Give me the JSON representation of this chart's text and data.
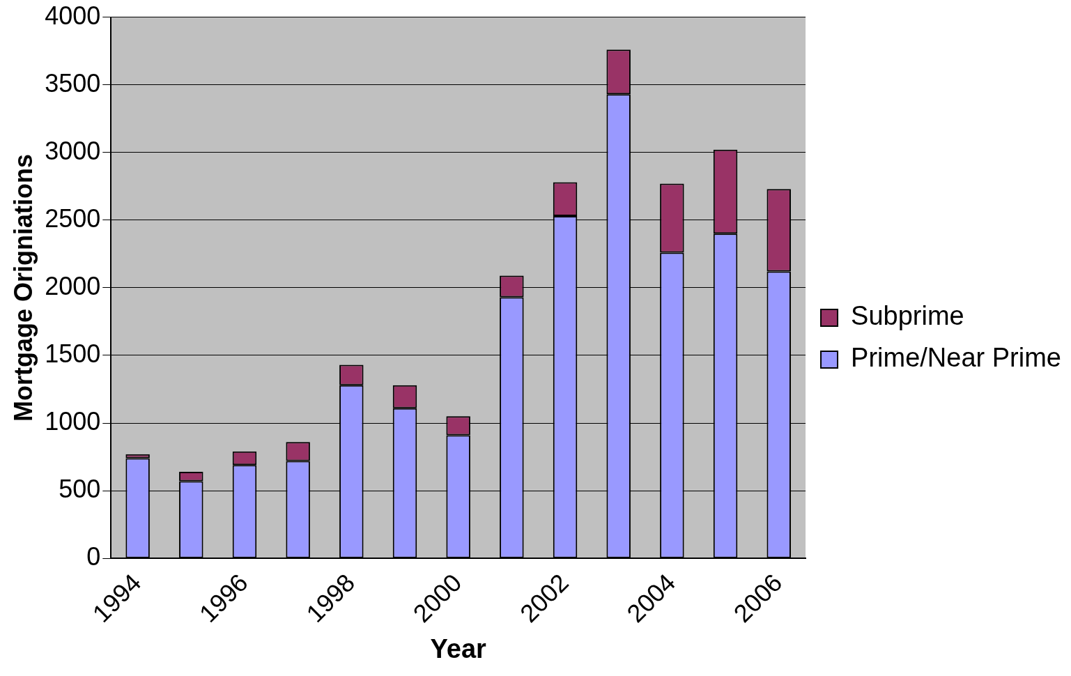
{
  "chart_data": {
    "type": "bar",
    "xlabel": "Year",
    "ylabel": "Mortgage Origniations",
    "categories": [
      "1994",
      null,
      "1996",
      null,
      "1998",
      null,
      "2000",
      null,
      "2002",
      null,
      "2004",
      null,
      "2006"
    ],
    "series": [
      {
        "name": "Prime/Near Prime",
        "color": "#9999ff",
        "values": [
          740,
          570,
          690,
          720,
          1280,
          1110,
          910,
          1930,
          2530,
          3430,
          2260,
          2400,
          2120
        ]
      },
      {
        "name": "Subprime",
        "color": "#993366",
        "values": [
          30,
          70,
          100,
          140,
          150,
          170,
          140,
          160,
          250,
          330,
          510,
          620,
          610
        ]
      }
    ],
    "stacked": true,
    "ylim": [
      0,
      4000
    ],
    "yticks": [
      0,
      500,
      1000,
      1500,
      2000,
      2500,
      3000,
      3500,
      4000
    ],
    "grid": "y",
    "legend": "right"
  }
}
